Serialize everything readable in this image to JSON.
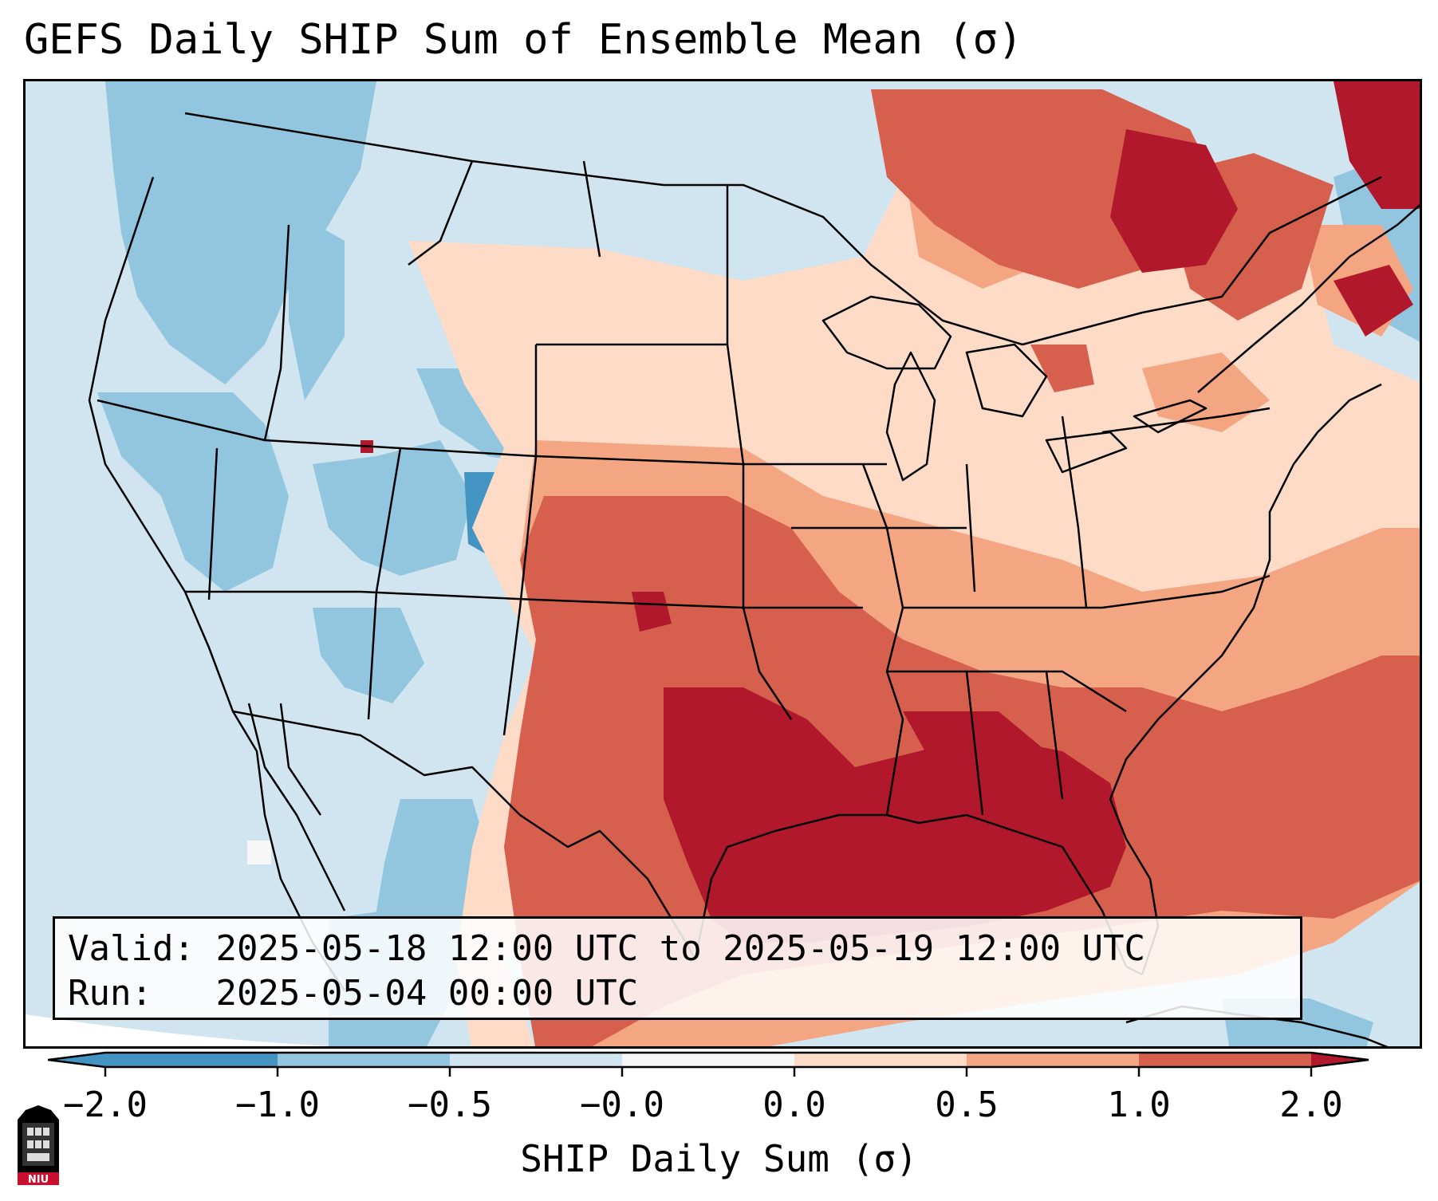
{
  "title": "GEFS Daily SHIP Sum of Ensemble Mean (σ)",
  "info": {
    "valid_label": "Valid:",
    "valid_value": "2025-05-18 12:00 UTC to 2025-05-19 12:00 UTC",
    "run_label": "Run:",
    "run_value": "2025-05-04 00:00 UTC"
  },
  "colorbar": {
    "label": "SHIP Daily Sum (σ)",
    "ticks": [
      "−2.0",
      "−1.0",
      "−0.5",
      "−0.0",
      "0.0",
      "0.5",
      "1.0",
      "2.0"
    ],
    "colors": [
      "#4393c3",
      "#92c5de",
      "#d1e5f0",
      "#f7f7f7",
      "#fddbc7",
      "#f4a582",
      "#d6604d",
      "#b2182b"
    ],
    "extend": "both"
  },
  "logo": {
    "text": "NIU",
    "colors": [
      "#c8102e",
      "#000000"
    ]
  },
  "legend_colors": {
    "strong_negative": "#4393c3",
    "negative": "#92c5de",
    "weak_negative": "#d1e5f0",
    "neutral": "#f7f7f7",
    "weak_positive": "#fddbc7",
    "positive": "#f4a582",
    "strong_positive": "#d6604d",
    "very_strong_positive": "#b2182b"
  }
}
